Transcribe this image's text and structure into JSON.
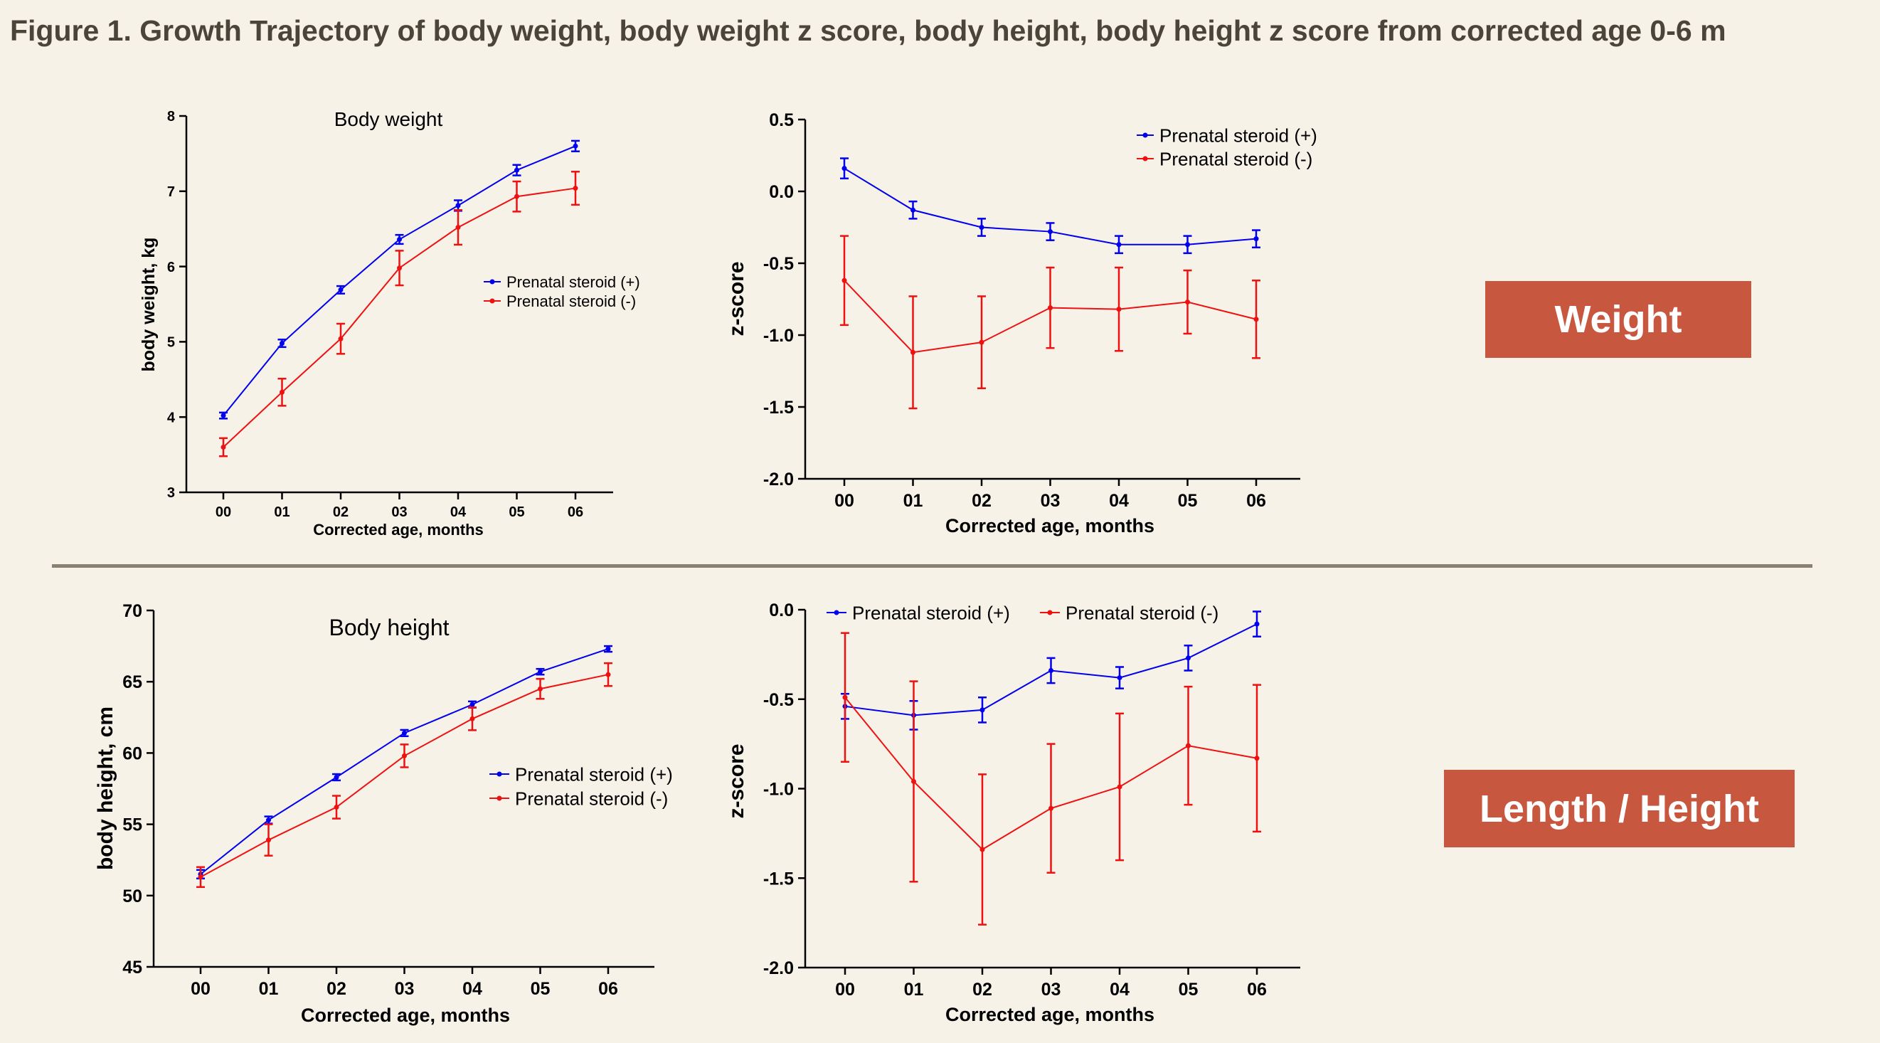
{
  "title": "Figure 1. Growth Trajectory of body weight, body weight z score, body height, body height z score from corrected age 0-6 m",
  "tags": {
    "weight": "Weight",
    "height": "Length / Height"
  },
  "colors": {
    "series_plus": "#0000ee",
    "series_minus": "#ee1111",
    "tag_bg": "#c8573f",
    "background": "#f7f2e8",
    "divider": "#8a8070"
  },
  "chart_data": [
    {
      "type": "line",
      "title": "Body weight",
      "xlabel": "Corrected age, months",
      "ylabel": "body weight, kg",
      "categories": [
        "00",
        "01",
        "02",
        "03",
        "04",
        "05",
        "06"
      ],
      "ylim": [
        3,
        8
      ],
      "yticks": [
        "3",
        "4",
        "5",
        "6",
        "7",
        "8"
      ],
      "grid": false,
      "legend": "right-middle",
      "series": [
        {
          "name": "Prenatal steroid (+)",
          "values": [
            4.02,
            4.98,
            5.69,
            6.36,
            6.81,
            7.28,
            7.6
          ],
          "err": [
            0.04,
            0.05,
            0.05,
            0.06,
            0.07,
            0.07,
            0.07
          ]
        },
        {
          "name": "Prenatal steroid (-)",
          "values": [
            3.6,
            4.33,
            5.04,
            5.98,
            6.52,
            6.93,
            7.04
          ],
          "err": [
            0.12,
            0.18,
            0.2,
            0.23,
            0.23,
            0.2,
            0.22
          ]
        }
      ]
    },
    {
      "type": "line",
      "title": "",
      "xlabel": "Corrected age, months",
      "ylabel": "z-score",
      "categories": [
        "00",
        "01",
        "02",
        "03",
        "04",
        "05",
        "06"
      ],
      "ylim": [
        -2.0,
        0.5
      ],
      "yticks": [
        "-2.0",
        "-1.5",
        "-1.0",
        "-0.5",
        "0.0",
        "0.5"
      ],
      "grid": false,
      "legend": "top-center",
      "series": [
        {
          "name": "Prenatal steroid (+)",
          "values": [
            0.16,
            -0.13,
            -0.25,
            -0.28,
            -0.37,
            -0.37,
            -0.33
          ],
          "err": [
            0.07,
            0.06,
            0.06,
            0.06,
            0.06,
            0.06,
            0.06
          ]
        },
        {
          "name": "Prenatal steroid (-)",
          "values": [
            -0.62,
            -1.12,
            -1.05,
            -0.81,
            -0.82,
            -0.77,
            -0.89
          ],
          "err": [
            0.31,
            0.39,
            0.32,
            0.28,
            0.29,
            0.22,
            0.27
          ]
        }
      ]
    },
    {
      "type": "line",
      "title": "Body height",
      "xlabel": "Corrected age, months",
      "ylabel": "body height, cm",
      "categories": [
        "00",
        "01",
        "02",
        "03",
        "04",
        "05",
        "06"
      ],
      "ylim": [
        45,
        70
      ],
      "yticks": [
        "45",
        "50",
        "55",
        "60",
        "65",
        "70"
      ],
      "grid": false,
      "legend": "right-middle",
      "series": [
        {
          "name": "Prenatal steroid (+)",
          "values": [
            51.5,
            55.3,
            58.3,
            61.4,
            63.4,
            65.7,
            67.3
          ],
          "err": [
            0.3,
            0.25,
            0.22,
            0.22,
            0.22,
            0.2,
            0.2
          ]
        },
        {
          "name": "Prenatal steroid (-)",
          "values": [
            51.3,
            53.9,
            56.2,
            59.8,
            62.4,
            64.5,
            65.5
          ],
          "err": [
            0.7,
            1.1,
            0.8,
            0.8,
            0.8,
            0.7,
            0.8
          ]
        }
      ]
    },
    {
      "type": "line",
      "title": "",
      "xlabel": "Corrected age, months",
      "ylabel": "z-score",
      "categories": [
        "00",
        "01",
        "02",
        "03",
        "04",
        "05",
        "06"
      ],
      "ylim": [
        -2.0,
        0.0
      ],
      "yticks": [
        "-2.0",
        "-1.5",
        "-1.0",
        "-0.5",
        "0.0"
      ],
      "grid": false,
      "legend": "top-left",
      "series": [
        {
          "name": "Prenatal steroid (+)",
          "values": [
            -0.54,
            -0.59,
            -0.56,
            -0.34,
            -0.38,
            -0.27,
            -0.08
          ],
          "err": [
            0.07,
            0.08,
            0.07,
            0.07,
            0.06,
            0.07,
            0.07
          ]
        },
        {
          "name": "Prenatal steroid (-)",
          "values": [
            -0.49,
            -0.96,
            -1.34,
            -1.11,
            -0.99,
            -0.76,
            -0.83
          ],
          "err": [
            0.36,
            0.56,
            0.42,
            0.36,
            0.41,
            0.33,
            0.41
          ]
        }
      ]
    }
  ]
}
